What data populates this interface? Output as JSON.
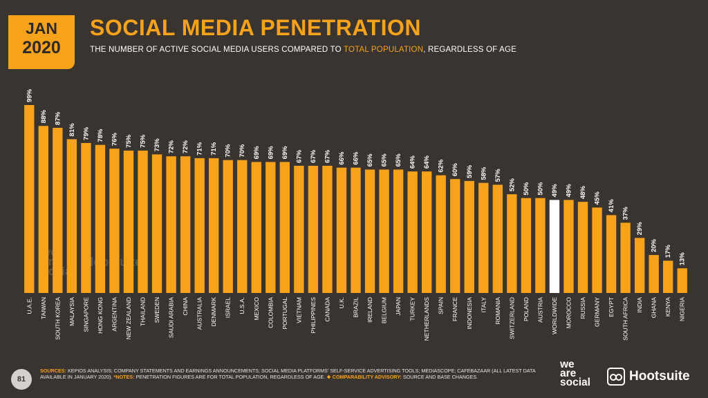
{
  "badge": {
    "month": "JAN",
    "year": "2020"
  },
  "title": "SOCIAL MEDIA PENETRATION",
  "subtitle": {
    "before": "THE NUMBER OF ACTIVE SOCIAL MEDIA USERS COMPARED TO ",
    "highlight": "TOTAL POPULATION",
    "after": ", REGARDLESS OF AGE"
  },
  "colors": {
    "accent": "#f7a21b",
    "background": "#3a3431",
    "highlight_bar": "#ffffff"
  },
  "chart_data": {
    "type": "bar",
    "categories": [
      "U.A.E.",
      "TAIWAN",
      "SOUTH KOREA",
      "MALAYSIA",
      "SINGAPORE",
      "HONG KONG",
      "ARGENTINA",
      "NEW ZEALAND",
      "THAILAND",
      "SWEDEN",
      "SAUDI ARABIA",
      "CHINA",
      "AUSTRALIA",
      "DENMARK",
      "ISRAEL",
      "U.S.A.",
      "MEXICO",
      "COLOMBIA",
      "PORTUGAL",
      "VIETNAM",
      "PHILIPPINES",
      "CANADA",
      "U.K.",
      "BRAZIL",
      "IRELAND",
      "BELGIUM",
      "JAPAN",
      "TURKEY",
      "NETHERLANDS",
      "SPAIN",
      "FRANCE",
      "INDONESIA",
      "ITALY",
      "ROMANIA",
      "SWITZERLAND",
      "POLAND",
      "AUSTRIA",
      "WORLDWIDE",
      "MOROCCO",
      "RUSSIA",
      "GERMANY",
      "EGYPT",
      "SOUTH AFRICA",
      "INDIA",
      "GHANA",
      "KENYA",
      "NIGERIA"
    ],
    "values": [
      99,
      88,
      87,
      81,
      79,
      78,
      76,
      75,
      75,
      73,
      72,
      72,
      71,
      71,
      70,
      70,
      69,
      69,
      69,
      67,
      67,
      67,
      66,
      66,
      65,
      65,
      65,
      64,
      64,
      62,
      60,
      59,
      58,
      57,
      52,
      50,
      50,
      49,
      49,
      48,
      45,
      41,
      37,
      29,
      20,
      17,
      13
    ],
    "labels": [
      "99%",
      "88%",
      "87%",
      "81%",
      "79%",
      "78%",
      "76%",
      "75%",
      "75%",
      "73%",
      "72%",
      "72%",
      "71%",
      "71%",
      "70%",
      "70%",
      "69%",
      "69%",
      "69%",
      "67%",
      "67%",
      "67%",
      "66%",
      "66%",
      "65%",
      "65%",
      "65%",
      "64%",
      "64%",
      "62%",
      "60%",
      "59%",
      "58%",
      "57%",
      "52%",
      "50%",
      "50%",
      "49%",
      "49%",
      "48%",
      "45%",
      "41%",
      "37%",
      "29%",
      "20%",
      "17%",
      "13%"
    ],
    "highlight_category": "WORLDWIDE",
    "ylim": [
      0,
      100
    ],
    "grid": false
  },
  "footer": {
    "page_number": "81",
    "sources_label": "SOURCES:",
    "sources_text": " KEPIOS ANALYSIS; COMPANY STATEMENTS AND EARNINGS ANNOUNCEMENTS; SOCIAL MEDIA PLATFORMS' SELF-SERVICE ADVERTISING TOOLS; MEDIASCOPE; CAFEBAZAAR (ALL LATEST DATA AVAILABLE IN JANUARY 2020). ",
    "notes_label": "*NOTES:",
    "notes_text": " PENETRATION FIGURES ARE FOR TOTAL POPULATION, REGARDLESS OF AGE. ",
    "advisory_label": "❖ COMPARABILITY ADVISORY:",
    "advisory_text": " SOURCE AND BASE CHANGES."
  },
  "logos": {
    "wearesocial": [
      "we",
      "are",
      "social"
    ],
    "hootsuite": "Hootsuite",
    "owl_icon": "owl-icon"
  }
}
